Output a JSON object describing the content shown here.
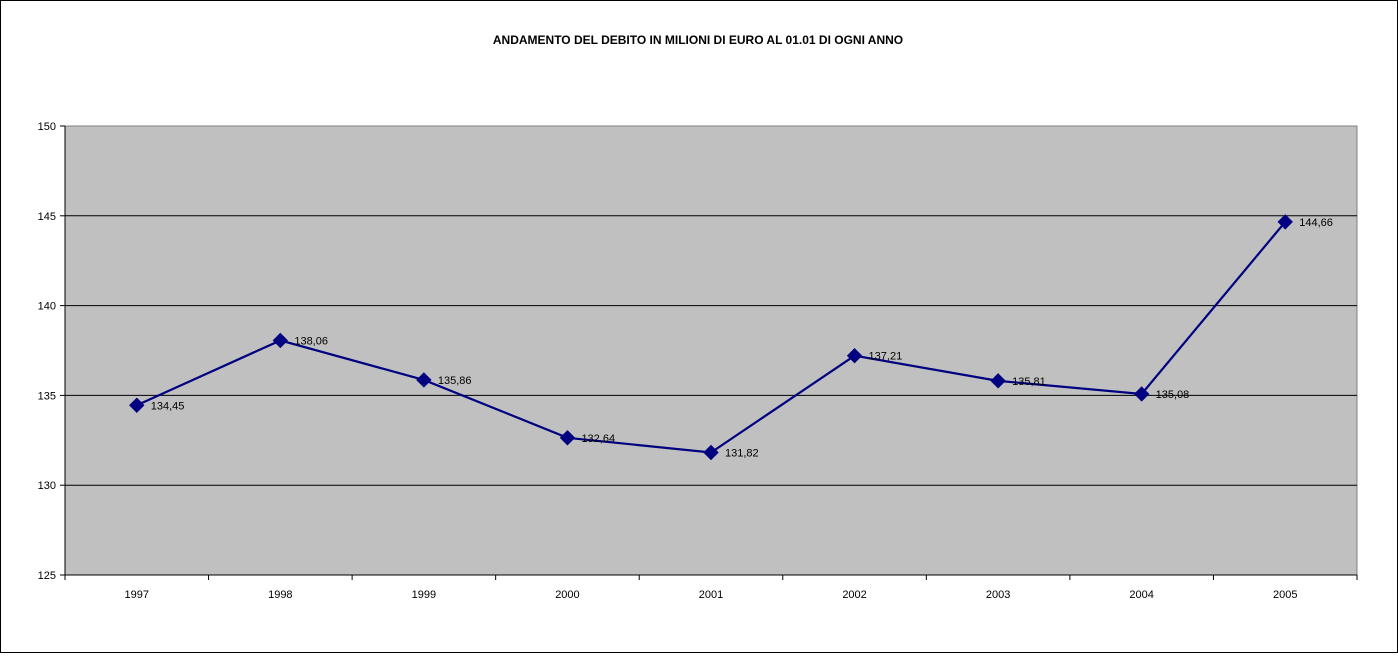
{
  "chart_data": {
    "type": "line",
    "title": "ANDAMENTO DEL DEBITO IN MILIONI DI EURO AL 01.01 DI OGNI ANNO",
    "xlabel": "",
    "ylabel": "",
    "categories": [
      "1997",
      "1998",
      "1999",
      "2000",
      "2001",
      "2002",
      "2003",
      "2004",
      "2005"
    ],
    "series": [
      {
        "values": [
          134.45,
          138.06,
          135.86,
          132.64,
          131.82,
          137.21,
          135.81,
          135.08,
          144.66
        ],
        "data_labels": [
          "134,45",
          "138,06",
          "135,86",
          "132,64",
          "131,82",
          "137,21",
          "135,81",
          "135,08",
          "144,66"
        ],
        "color": "#000080",
        "marker": "diamond"
      }
    ],
    "ylim": [
      125,
      150
    ],
    "yticks": [
      125,
      130,
      135,
      140,
      145,
      150
    ],
    "grid": "horizontal",
    "legend": "none",
    "plot_background": "#c0c0c0"
  }
}
